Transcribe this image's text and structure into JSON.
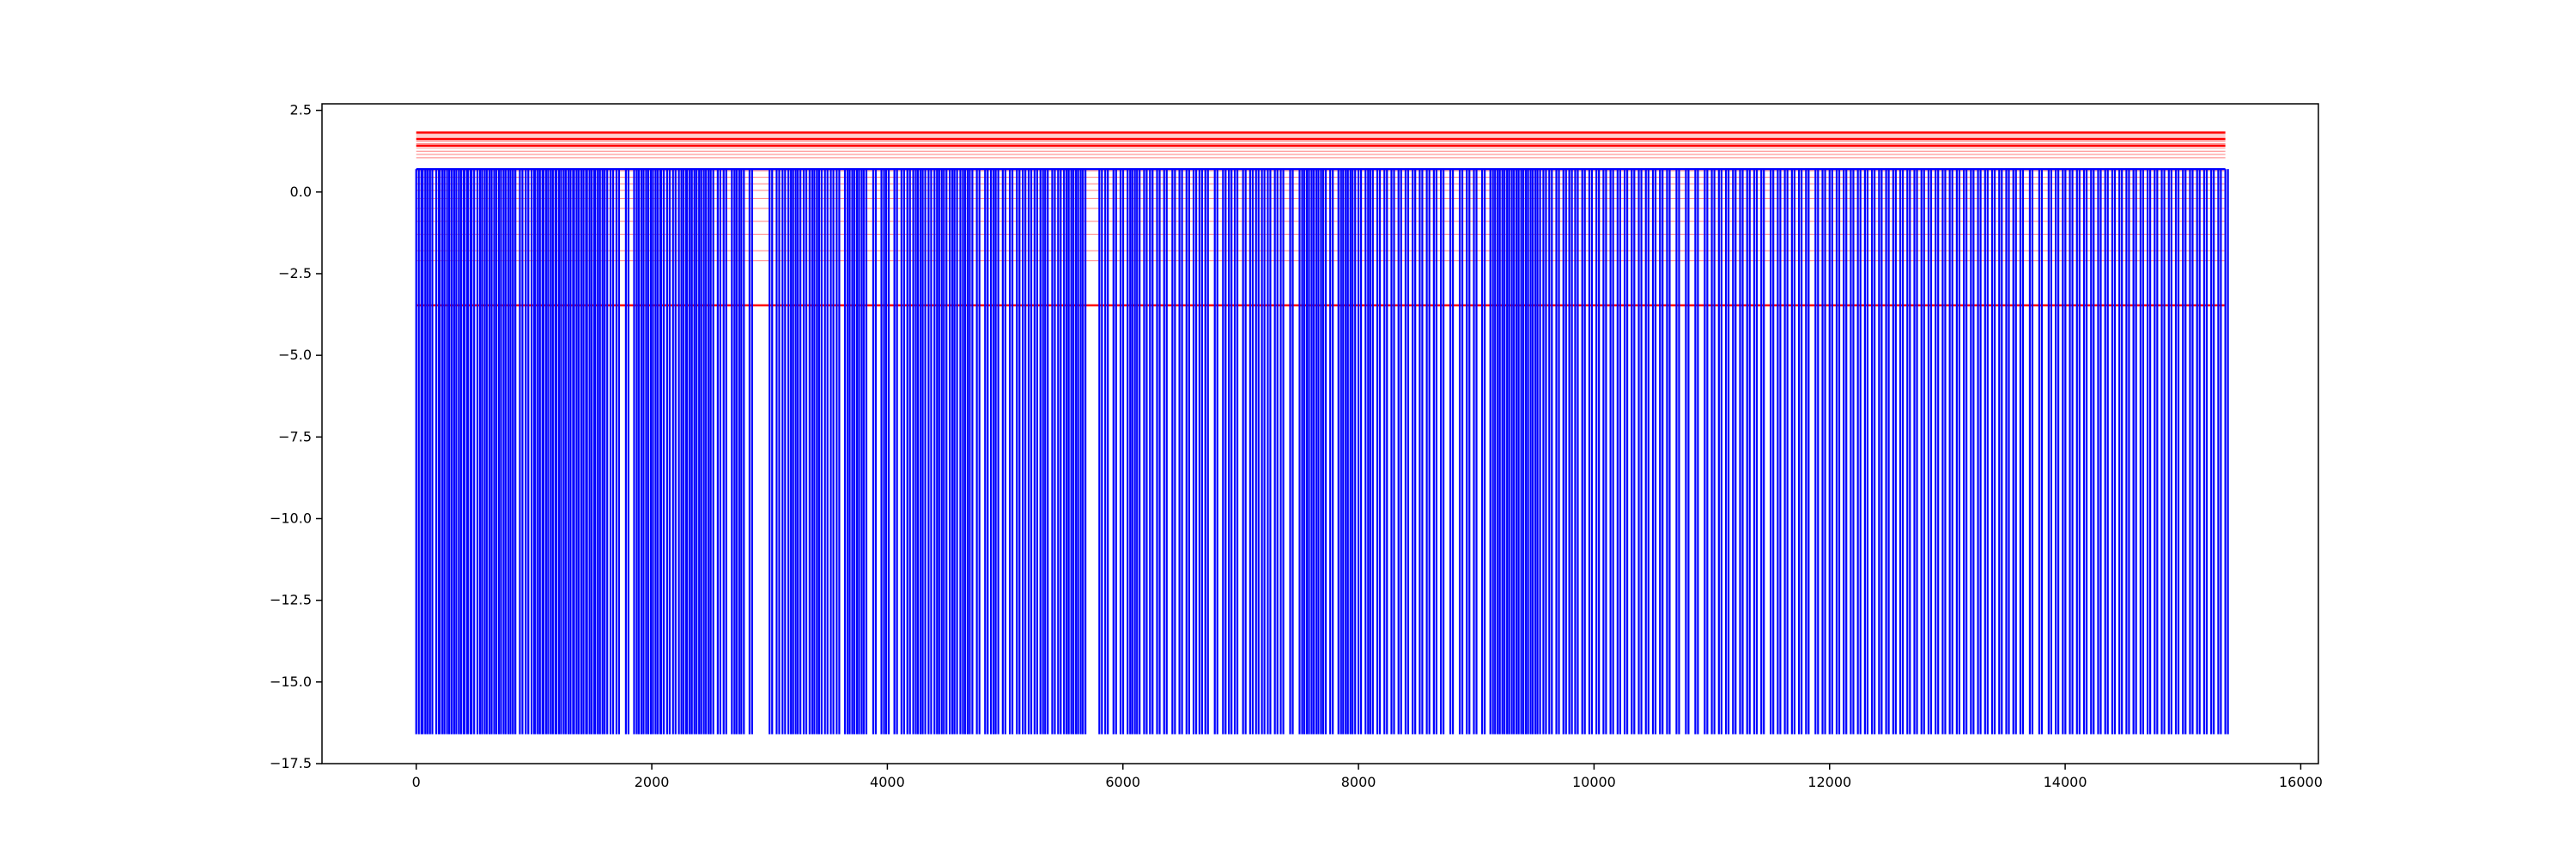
{
  "chart_data": {
    "type": "line",
    "title": "",
    "xlabel": "",
    "ylabel": "",
    "xlim": [
      -800,
      16150
    ],
    "ylim": [
      -17.5,
      2.7
    ],
    "x_ticks": [
      0,
      2000,
      4000,
      6000,
      8000,
      10000,
      12000,
      14000,
      16000
    ],
    "y_ticks": [
      2.5,
      0.0,
      -2.5,
      -5.0,
      -7.5,
      -10.0,
      -12.5,
      -15.0,
      -17.5
    ],
    "x_tick_labels": [
      "0",
      "2000",
      "4000",
      "6000",
      "8000",
      "10000",
      "12000",
      "14000",
      "16000"
    ],
    "y_tick_labels": [
      "2.5",
      "0.0",
      "−2.5",
      "−5.0",
      "−7.5",
      "−10.0",
      "−12.5",
      "−15.0",
      "−17.5"
    ],
    "grid": false,
    "legend": "none",
    "series": [
      {
        "color": "#0000ff",
        "style": "step",
        "x_range": [
          0,
          15360
        ],
        "levels": [
          0.7,
          -16.6
        ],
        "drop_x": [
          0,
          22,
          55,
          95,
          115,
          170,
          200,
          240,
          280,
          300,
          340,
          380,
          410,
          440,
          470,
          520,
          560,
          600,
          640,
          680,
          720,
          760,
          800,
          820,
          880,
          930,
          980,
          1010,
          1050,
          1080,
          1120,
          1160,
          1190,
          1230,
          1270,
          1310,
          1340,
          1380,
          1420,
          1450,
          1490,
          1520,
          1560,
          1600,
          1650,
          1700,
          1780,
          1850,
          1890,
          1930,
          1970,
          2010,
          2050,
          2080,
          2130,
          2180,
          2230,
          2270,
          2300,
          2340,
          2380,
          2420,
          2460,
          2500,
          2560,
          2610,
          2680,
          2720,
          2760,
          2830,
          3000,
          3060,
          3110,
          3160,
          3200,
          3240,
          3290,
          3340,
          3380,
          3420,
          3470,
          3520,
          3570,
          3640,
          3680,
          3720,
          3760,
          3800,
          3880,
          3950,
          3990,
          4060,
          4120,
          4170,
          4220,
          4260,
          4300,
          4350,
          4400,
          4440,
          4480,
          4530,
          4570,
          4620,
          4660,
          4700,
          4760,
          4830,
          4880,
          4920,
          4980,
          5040,
          5100,
          5150,
          5200,
          5250,
          5300,
          5340,
          5400,
          5450,
          5500,
          5540,
          5580,
          5620,
          5660,
          5800,
          5850,
          5920,
          5980,
          6040,
          6080,
          6120,
          6180,
          6230,
          6290,
          6350,
          6420,
          6480,
          6540,
          6600,
          6650,
          6700,
          6780,
          6850,
          6900,
          6950,
          7020,
          7080,
          7130,
          7180,
          7230,
          7290,
          7340,
          7420,
          7500,
          7540,
          7580,
          7620,
          7660,
          7700,
          7760,
          7830,
          7870,
          7910,
          7950,
          8000,
          8060,
          8100,
          8160,
          8220,
          8280,
          8340,
          8400,
          8460,
          8520,
          8580,
          8640,
          8700,
          8780,
          8860,
          8920,
          8980,
          9050,
          9120,
          9160,
          9200,
          9240,
          9280,
          9320,
          9360,
          9400,
          9440,
          9480,
          9520,
          9570,
          9620,
          9680,
          9740,
          9790,
          9840,
          9900,
          9960,
          10020,
          10080,
          10140,
          10200,
          10260,
          10320,
          10380,
          10440,
          10500,
          10560,
          10620,
          10700,
          10780,
          10860,
          10940,
          11000,
          11060,
          11120,
          11180,
          11240,
          11300,
          11360,
          11420,
          11500,
          11560,
          11620,
          11680,
          11740,
          11800,
          11880,
          11940,
          12000,
          12060,
          12120,
          12180,
          12240,
          12300,
          12360,
          12420,
          12480,
          12540,
          12600,
          12660,
          12720,
          12780,
          12840,
          12900,
          12960,
          13020,
          13080,
          13140,
          13200,
          13260,
          13320,
          13380,
          13440,
          13500,
          13560,
          13620,
          13700,
          13780,
          13860,
          13920,
          13980,
          14040,
          14100,
          14160,
          14220,
          14280,
          14340,
          14400,
          14460,
          14520,
          14580,
          14640,
          14700,
          14760,
          14820,
          14880,
          14940,
          15000,
          15060,
          15120,
          15180,
          15240,
          15300,
          15360
        ]
      },
      {
        "color": "#ff0000",
        "style": "hlines",
        "x_range": [
          0,
          15360
        ],
        "bold_levels": [
          1.82,
          1.62,
          1.42,
          -3.47
        ],
        "light_levels": [
          1.75,
          1.68,
          1.55,
          1.48,
          1.35,
          1.25,
          1.15,
          1.05,
          0.65,
          0.45,
          0.25,
          0.05,
          -0.2,
          -0.5,
          -0.9,
          -1.3,
          -1.8,
          -2.1
        ]
      }
    ]
  }
}
